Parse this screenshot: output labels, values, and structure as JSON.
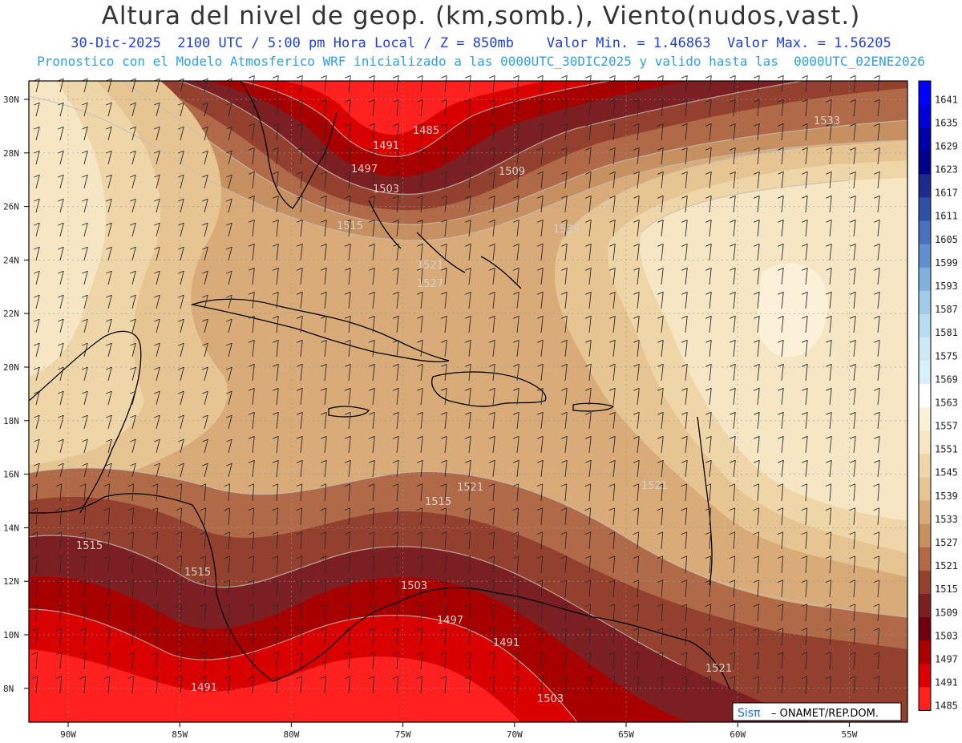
{
  "header": {
    "title": "Altura del nivel de geop. (km,somb.), Viento(nudos,vast.)",
    "line1": "30-Dic-2025  2100 UTC / 5:00 pm Hora Local / Z = 850mb    Valor Min. = 1.46863  Valor Max. = 1.56205",
    "line2": "Pronostico con el Modelo Atmosferico WRF inicializado a las 0000UTC_30DIC2025 y valido hasta las  0000UTC_02ENE2026"
  },
  "axes": {
    "lat_labels": [
      "30N",
      "28N",
      "26N",
      "24N",
      "22N",
      "20N",
      "18N",
      "16N",
      "14N",
      "12N",
      "10N",
      "8N"
    ],
    "lon_labels": [
      "90W",
      "85W",
      "80W",
      "75W",
      "70W",
      "65W",
      "60W",
      "55W"
    ]
  },
  "colorbar": {
    "levels": [
      "1641",
      "1635",
      "1629",
      "1623",
      "1617",
      "1611",
      "1605",
      "1599",
      "1593",
      "1587",
      "1581",
      "1575",
      "1569",
      "1563",
      "1557",
      "1551",
      "1545",
      "1539",
      "1533",
      "1527",
      "1521",
      "1515",
      "1509",
      "1503",
      "1497",
      "1491",
      "1485"
    ],
    "colors": [
      "#0000ff",
      "#0000d8",
      "#0000a8",
      "#00008a",
      "#1f2a90",
      "#3050a8",
      "#4a70c0",
      "#6090cc",
      "#80b0dc",
      "#a0ccea",
      "#b8dcf0",
      "#cce8f4",
      "#d8f0f8",
      "#ffffff",
      "#fbf1d8",
      "#f6e6c4",
      "#efd6a8",
      "#e6c592",
      "#d8ab78",
      "#c79060",
      "#b06a48",
      "#93402f",
      "#7c1f22",
      "#700010",
      "#a80000",
      "#d80000",
      "#ff2020"
    ]
  },
  "contour_labels": [
    "1485",
    "1491",
    "1497",
    "1503",
    "1509",
    "1515",
    "1521",
    "1527",
    "1515",
    "1521",
    "1515",
    "1515",
    "1503",
    "1497",
    "1491",
    "1491",
    "1503",
    "1521",
    "1521",
    "1533",
    "1539"
  ],
  "footer": {
    "brand": "Sisπ",
    "credit": "– ONAMET/REP.DOM."
  }
}
